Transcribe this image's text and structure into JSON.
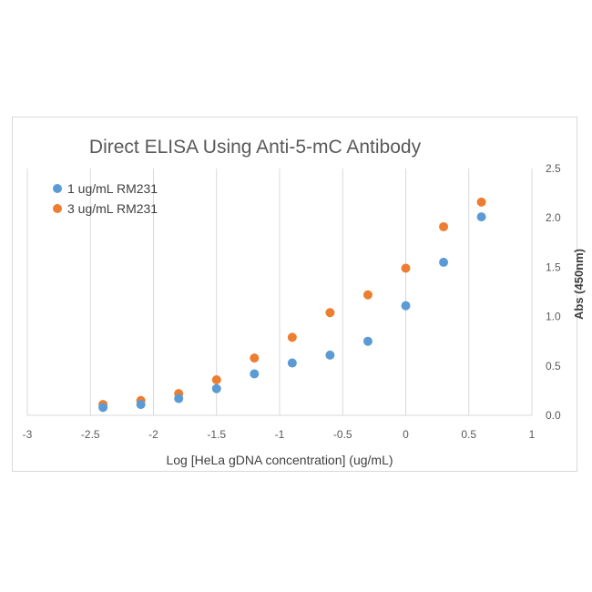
{
  "chart_data": {
    "type": "scatter",
    "title": "Direct ELISA Using Anti-5-mC Antibody",
    "xlabel": "Log [HeLa gDNA concentration] (ug/mL)",
    "ylabel": "Abs (450nm)",
    "xlim": [
      -3,
      1
    ],
    "ylim": [
      0,
      2.5
    ],
    "x_ticks": [
      "-3",
      "-2.5",
      "-2",
      "-1.5",
      "-1",
      "-0.5",
      "0",
      "0.5",
      "1"
    ],
    "y_ticks": [
      "0.0",
      "0.5",
      "1.0",
      "1.5",
      "2.0",
      "2.5"
    ],
    "grid": "vertical",
    "y_axis_side": "right",
    "legend_position": "top-left",
    "series": [
      {
        "name": "1 ug/mL RM231",
        "color": "#5b9bd5",
        "x": [
          -2.4,
          -2.1,
          -1.8,
          -1.5,
          -1.2,
          -0.9,
          -0.6,
          -0.3,
          0.0,
          0.3,
          0.6
        ],
        "y": [
          0.08,
          0.11,
          0.17,
          0.27,
          0.42,
          0.53,
          0.61,
          0.75,
          1.11,
          1.55,
          2.01
        ]
      },
      {
        "name": "3 ug/mL RM231",
        "color": "#ed7d31",
        "x": [
          -2.4,
          -2.1,
          -1.8,
          -1.5,
          -1.2,
          -0.9,
          -0.6,
          -0.3,
          0.0,
          0.3,
          0.6
        ],
        "y": [
          0.11,
          0.15,
          0.22,
          0.36,
          0.58,
          0.79,
          1.04,
          1.22,
          1.49,
          1.91,
          2.16
        ]
      }
    ]
  }
}
